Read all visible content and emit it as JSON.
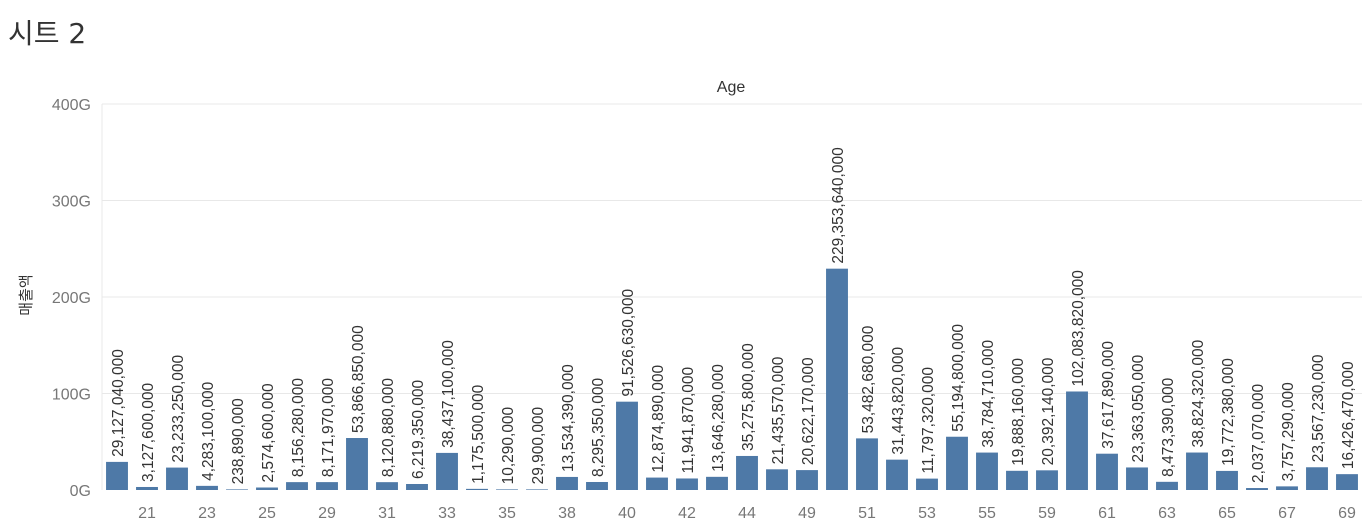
{
  "sheet": {
    "title": "시트 2"
  },
  "chart_data": {
    "type": "bar",
    "column_header": "Age",
    "ylabel": "매출액",
    "ylim": [
      0,
      400000000000
    ],
    "y_ticks": [
      {
        "value": 0,
        "label": "0G"
      },
      {
        "value": 100000000000,
        "label": "100G"
      },
      {
        "value": 200000000000,
        "label": "200G"
      },
      {
        "value": 300000000000,
        "label": "300G"
      },
      {
        "value": 400000000000,
        "label": "400G"
      }
    ],
    "x_tick_labels": [
      "21",
      "23",
      "25",
      "29",
      "31",
      "33",
      "35",
      "38",
      "40",
      "42",
      "44",
      "49",
      "51",
      "53",
      "55",
      "59",
      "61",
      "63",
      "65",
      "67",
      "69"
    ],
    "color": "#4e79a7",
    "grid": true,
    "values": [
      29127040000,
      3127600000,
      23233250000,
      4283100000,
      238890000,
      2574600000,
      8156280000,
      8171970000,
      53866850000,
      8120880000,
      6219350000,
      38437100000,
      1175500000,
      10290000,
      29900000,
      13534390000,
      8295350000,
      91526630000,
      12874890000,
      11941870000,
      13646280000,
      35275800000,
      21435570000,
      20622170000,
      229353640000,
      53482680000,
      31443820000,
      11797320000,
      55194800000,
      38784710000,
      19888160000,
      20392140000,
      102083820000,
      37617890000,
      23363050000,
      8473390000,
      38824320000,
      19772380000,
      2037070000,
      3757290000,
      23567230000,
      16426470000
    ],
    "data_labels": [
      "29,127,040,000",
      "3,127,600,000",
      "23,233,250,000",
      "4,283,100,000",
      "238,890,000",
      "2,574,600,000",
      "8,156,280,000",
      "8,171,970,000",
      "53,866,850,000",
      "8,120,880,000",
      "6,219,350,000",
      "38,437,100,000",
      "1,175,500,000",
      "10,290,000",
      "29,900,000",
      "13,534,390,000",
      "8,295,350,000",
      "91,526,630,000",
      "12,874,890,000",
      "11,941,870,000",
      "13,646,280,000",
      "35,275,800,000",
      "21,435,570,000",
      "20,622,170,000",
      "229,353,640,000",
      "53,482,680,000",
      "31,443,820,000",
      "11,797,320,000",
      "55,194,800,000",
      "38,784,710,000",
      "19,888,160,000",
      "20,392,140,000",
      "102,083,820,000",
      "37,617,890,000",
      "23,363,050,000",
      "8,473,390,000",
      "38,824,320,000",
      "19,772,380,000",
      "2,037,070,000",
      "3,757,290,000",
      "23,567,230,000",
      "16,426,470,000"
    ]
  }
}
